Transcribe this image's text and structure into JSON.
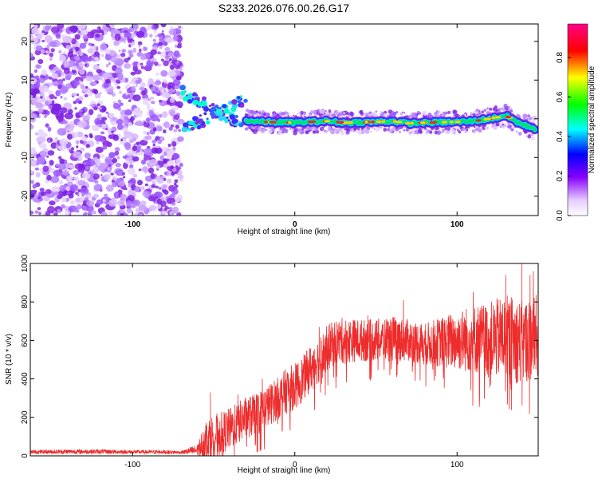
{
  "chart_data": [
    {
      "type": "heatmap",
      "title": "S233.2026.076.00.26.G17",
      "xlabel": "Height of straight line (km)",
      "ylabel": "Frequency (Hz)",
      "xlim": [
        -163,
        150
      ],
      "ylim": [
        -25,
        24.5
      ],
      "xticks": [
        -100,
        0,
        100
      ],
      "xtick_labels": [
        "-100",
        "0",
        "100"
      ],
      "yticks": [
        -20,
        -10,
        0,
        10,
        20
      ],
      "ytick_labels": [
        "-20",
        "-10",
        "0",
        "10",
        "20"
      ],
      "colorbar": {
        "label": "Normalized spectral amplitude",
        "range": [
          0,
          0.97
        ],
        "ticks": [
          0,
          0.2,
          0.4,
          0.6,
          0.8
        ],
        "tick_labels": [
          "0.0",
          "0.2",
          "0.4",
          "0.6",
          "0.8"
        ],
        "colormap": [
          "#ffffff",
          "#8800ff",
          "#0000ff",
          "#00ffff",
          "#00ff00",
          "#ffff00",
          "#ff0000",
          "#ff0088"
        ]
      },
      "regions": [
        {
          "name": "noise",
          "x": [
            -163,
            -70
          ],
          "freq": [
            -25,
            24.5
          ],
          "amplitude": 0.1
        },
        {
          "name": "onset-streaks",
          "x": [
            -70,
            -30
          ],
          "freq": [
            -6,
            9
          ],
          "amplitude": 0.3
        },
        {
          "name": "doppler-ridge",
          "x": [
            -30,
            148
          ],
          "freq": [
            -3.5,
            2
          ],
          "amplitude": 0.95
        }
      ],
      "ridge": {
        "x": [
          -30,
          -20,
          -10,
          0,
          10,
          20,
          30,
          40,
          50,
          60,
          70,
          80,
          90,
          100,
          110,
          120,
          130,
          140,
          148
        ],
        "freq": [
          -0.5,
          -0.8,
          -0.9,
          -1.0,
          -0.8,
          -0.6,
          -1.0,
          -0.9,
          -0.8,
          -0.6,
          -1.2,
          -1.0,
          -0.9,
          -0.8,
          -0.6,
          0.0,
          0.8,
          -1.5,
          -2.5
        ]
      }
    },
    {
      "type": "line",
      "xlabel": "Height of straight line (km)",
      "ylabel": "SNR (10 * v/v)",
      "xlim": [
        -163,
        150
      ],
      "ylim": [
        0,
        1000
      ],
      "xticks": [
        -100,
        0,
        100
      ],
      "xtick_labels": [
        "-100",
        "0",
        "100"
      ],
      "yticks": [
        0,
        200,
        400,
        600,
        800,
        1000
      ],
      "ytick_labels": [
        "0",
        "200",
        "400",
        "600",
        "800",
        "1000"
      ],
      "series": [
        {
          "name": "SNR",
          "color": "#ee2c2c",
          "x": [
            -163,
            -140,
            -120,
            -100,
            -80,
            -70,
            -60,
            -55,
            -50,
            -45,
            -40,
            -35,
            -30,
            -25,
            -20,
            -15,
            -10,
            -5,
            0,
            5,
            10,
            15,
            20,
            25,
            30,
            40,
            50,
            60,
            70,
            80,
            90,
            100,
            110,
            120,
            130,
            140,
            150
          ],
          "mean": [
            20,
            22,
            22,
            20,
            20,
            18,
            30,
            90,
            110,
            120,
            140,
            170,
            200,
            210,
            240,
            270,
            300,
            340,
            360,
            400,
            460,
            500,
            560,
            590,
            600,
            600,
            600,
            610,
            600,
            580,
            590,
            600,
            610,
            600,
            620,
            590,
            620
          ],
          "spread": [
            10,
            12,
            12,
            10,
            10,
            8,
            30,
            100,
            110,
            110,
            110,
            110,
            110,
            110,
            110,
            110,
            110,
            120,
            120,
            120,
            120,
            120,
            120,
            120,
            120,
            110,
            110,
            120,
            110,
            110,
            130,
            160,
            180,
            200,
            220,
            220,
            220
          ],
          "peaks": [
            [
              -52,
              330
            ],
            [
              -35,
              320
            ],
            [
              -20,
              400
            ],
            [
              15,
              670
            ],
            [
              45,
              730
            ],
            [
              67,
              810
            ],
            [
              110,
              850
            ],
            [
              130,
              940
            ],
            [
              140,
              1000
            ],
            [
              145,
              940
            ],
            [
              147,
              960
            ]
          ]
        }
      ]
    }
  ]
}
